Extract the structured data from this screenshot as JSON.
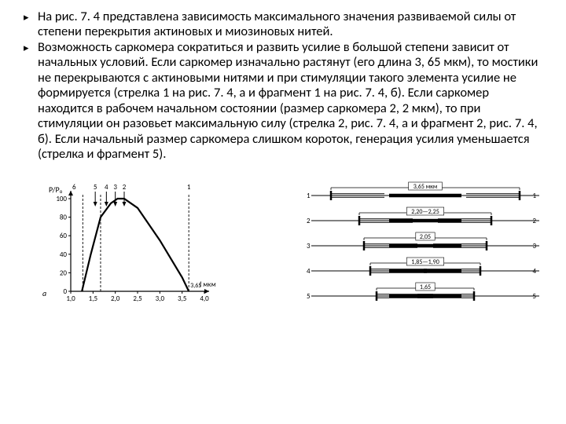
{
  "bullets": [
    "На рис. 7. 4 представлена зависимость максимального значения развиваемой силы от степени перекрытия актиновых и миозиновых нитей.",
    "Возможность саркомера сократиться и развить усилие в большой степени зависит от начальных условий. Если саркомер изначально растянут (его длина 3, 65 мкм), то мостики не перекрываются с актиновыми нитями и при стимуляции такого элемента усилие не формируется (стрелка 1 на рис. 7. 4, а и фрагмент 1 на рис. 7. 4, б). Если саркомер находится в рабочем начальном состоянии (размер саркомера 2, 2 мкм), то при стимуляции он разовьет максимальную силу (стрелка 2, рис. 7. 4, а и фрагмент 2, рис. 7. 4, б). Если начальный размер саркомера слишком короток, генерация усилия уменьшается (стрелка и фрагмент 5)."
  ],
  "graph": {
    "y_label": "P/P₀",
    "x_label": "l мкм",
    "y_axis_end_label": "6",
    "y_ticks": [
      {
        "v": 100,
        "label": "100"
      },
      {
        "v": 80,
        "label": "80"
      },
      {
        "v": 60,
        "label": "60"
      },
      {
        "v": 40,
        "label": "40"
      },
      {
        "v": 20,
        "label": "20"
      },
      {
        "v": 0,
        "label": "0"
      }
    ],
    "x_ticks": [
      {
        "v": 1.0,
        "label": "1,0"
      },
      {
        "v": 1.5,
        "label": "1,5"
      },
      {
        "v": 2.0,
        "label": "2,0"
      },
      {
        "v": 2.5,
        "label": "2,5"
      },
      {
        "v": 3.0,
        "label": "3,0"
      },
      {
        "v": 3.5,
        "label": "3,5"
      },
      {
        "v": 4.0,
        "label": "4,0"
      }
    ],
    "arrows_top": [
      {
        "x": 1.55,
        "label": "5"
      },
      {
        "x": 1.8,
        "label": "4"
      },
      {
        "x": 2.0,
        "label": "3"
      },
      {
        "x": 2.2,
        "label": "2"
      }
    ],
    "arrow_right": {
      "x": 3.65,
      "label": "1"
    },
    "right_tick_label": "3,65",
    "curve": [
      {
        "x": 1.25,
        "y": 0
      },
      {
        "x": 1.45,
        "y": 40
      },
      {
        "x": 1.67,
        "y": 80
      },
      {
        "x": 1.9,
        "y": 95
      },
      {
        "x": 2.05,
        "y": 100
      },
      {
        "x": 2.2,
        "y": 100
      },
      {
        "x": 2.5,
        "y": 90
      },
      {
        "x": 3.0,
        "y": 55
      },
      {
        "x": 3.5,
        "y": 15
      },
      {
        "x": 3.65,
        "y": 0
      }
    ],
    "dashed_x": [
      1.27,
      1.67,
      3.65
    ],
    "panel_label": "a",
    "colors": {
      "axis": "#000000",
      "curve": "#000000",
      "dash": "#000000",
      "text": "#000000"
    },
    "stroke_width": {
      "axis": 1.2,
      "curve": 2.2,
      "dash": 0.9
    }
  },
  "sarcomere": {
    "labels_above": [
      "3,65 мкм",
      "2,20—2,25",
      "2,05",
      "1,85—1,90",
      "1,65"
    ],
    "row_numbers_left": [
      "1",
      "2",
      "3",
      "4",
      "5"
    ],
    "row_numbers_right": [
      "1",
      "2",
      "3",
      "4",
      "5"
    ],
    "colors": {
      "line": "#000000",
      "thick": "#000000",
      "z": "#000000"
    },
    "rows": [
      {
        "z_half": 120,
        "actin_in": 68,
        "myosin_half": 46
      },
      {
        "z_half": 84,
        "actin_in": 68,
        "myosin_half": 46
      },
      {
        "z_half": 78,
        "actin_in": 68,
        "myosin_half": 46
      },
      {
        "z_half": 70,
        "actin_in": 72,
        "myosin_half": 46
      },
      {
        "z_half": 62,
        "actin_in": 72,
        "myosin_half": 46
      }
    ]
  }
}
